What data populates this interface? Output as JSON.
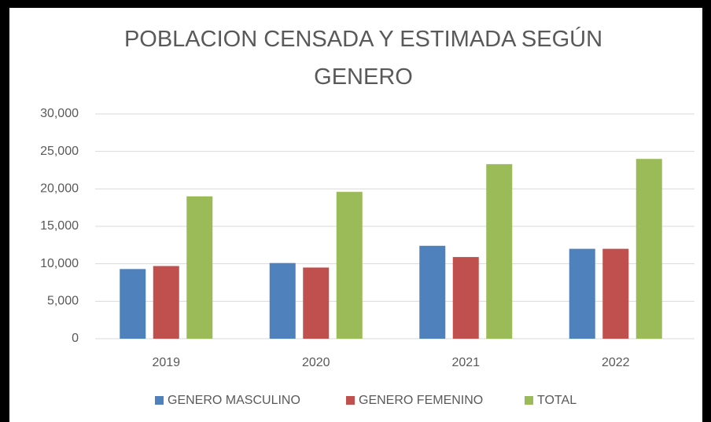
{
  "chart_data": {
    "type": "bar",
    "title": "POBLACION CENSADA Y ESTIMADA SEGÚN GENERO",
    "categories": [
      "2019",
      "2020",
      "2021",
      "2022"
    ],
    "series": [
      {
        "name": "GENERO MASCULINO",
        "color": "#4f81bd",
        "values": [
          9300,
          10100,
          12400,
          12000
        ]
      },
      {
        "name": "GENERO FEMENINO",
        "color": "#c0504d",
        "values": [
          9700,
          9500,
          10900,
          12000
        ]
      },
      {
        "name": "TOTAL",
        "color": "#9bbb59",
        "values": [
          19000,
          19600,
          23300,
          24000
        ]
      }
    ],
    "ylim": [
      0,
      30000
    ],
    "yticks": [
      0,
      {
        "value": 5000,
        "label": "5,000"
      },
      {
        "value": 10000,
        "label": "10,000"
      },
      {
        "value": 15000,
        "label": "15,000"
      },
      {
        "value": 20000,
        "label": "20,000"
      },
      {
        "value": 25000,
        "label": "25,000"
      },
      {
        "value": 30000,
        "label": "30,000"
      }
    ],
    "grid": true,
    "legend": "bottom"
  }
}
